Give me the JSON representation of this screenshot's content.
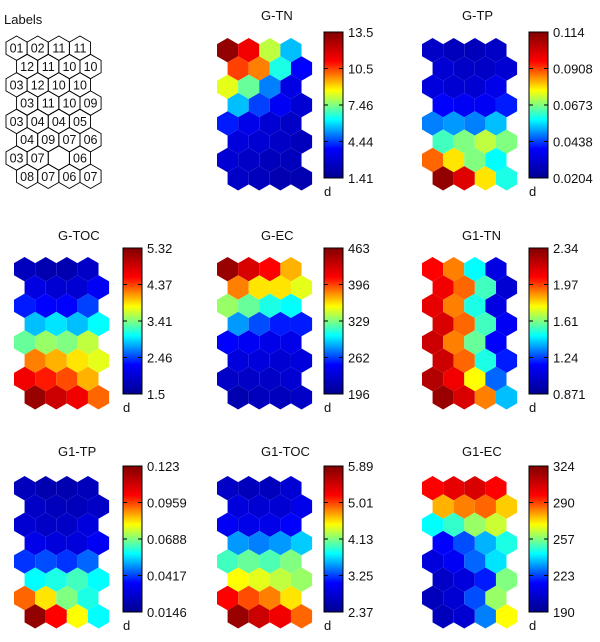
{
  "figure": {
    "labels_panel": {
      "title": "Labels",
      "rows": [
        [
          "01",
          "02",
          "11",
          "11"
        ],
        [
          "12",
          "11",
          "10",
          "10"
        ],
        [
          "03",
          "12",
          "10",
          "10"
        ],
        [
          "03",
          "11",
          "10",
          "09"
        ],
        [
          "03",
          "04",
          "04",
          "05"
        ],
        [
          "04",
          "09",
          "07",
          "06"
        ],
        [
          "03",
          "07",
          "",
          "06"
        ],
        [
          "08",
          "07",
          "06",
          "07"
        ]
      ]
    },
    "colorbar_unit": "d",
    "palette": [
      "#00008f",
      "#0000ff",
      "#00ffff",
      "#ffff00",
      "#ff0000",
      "#800000"
    ]
  },
  "chart_data": [
    {
      "type": "heatmap",
      "title": "G-TN",
      "colorbar_ticks": [
        "13.5",
        "10.5",
        "7.46",
        "4.44",
        "1.41"
      ],
      "range": [
        1.41,
        13.5
      ],
      "values": [
        [
          0.97,
          0.82,
          0.55,
          0.35
        ],
        [
          0.75,
          0.7,
          0.42,
          0.2
        ],
        [
          0.58,
          0.48,
          0.3,
          0.15
        ],
        [
          0.35,
          0.25,
          0.18,
          0.12
        ],
        [
          0.22,
          0.16,
          0.12,
          0.1
        ],
        [
          0.14,
          0.12,
          0.1,
          0.08
        ],
        [
          0.12,
          0.1,
          0.08,
          0.08
        ],
        [
          0.1,
          0.08,
          0.06,
          0.06
        ]
      ]
    },
    {
      "type": "heatmap",
      "title": "G-TP",
      "colorbar_ticks": [
        "0.114",
        "0.0908",
        "0.0673",
        "0.0438",
        "0.0204"
      ],
      "range": [
        0.0204,
        0.114
      ],
      "values": [
        [
          0.1,
          0.08,
          0.08,
          0.1
        ],
        [
          0.12,
          0.1,
          0.1,
          0.12
        ],
        [
          0.14,
          0.12,
          0.12,
          0.16
        ],
        [
          0.2,
          0.18,
          0.18,
          0.22
        ],
        [
          0.3,
          0.32,
          0.3,
          0.35
        ],
        [
          0.45,
          0.5,
          0.55,
          0.5
        ],
        [
          0.72,
          0.62,
          0.5,
          0.4
        ],
        [
          0.97,
          0.85,
          0.62,
          0.42
        ]
      ]
    },
    {
      "type": "heatmap",
      "title": "G-TOC",
      "colorbar_ticks": [
        "5.32",
        "4.37",
        "3.41",
        "2.46",
        "1.5"
      ],
      "range": [
        1.5,
        5.32
      ],
      "values": [
        [
          0.08,
          0.06,
          0.06,
          0.1
        ],
        [
          0.15,
          0.12,
          0.12,
          0.18
        ],
        [
          0.22,
          0.2,
          0.2,
          0.25
        ],
        [
          0.35,
          0.38,
          0.35,
          0.4
        ],
        [
          0.48,
          0.52,
          0.5,
          0.55
        ],
        [
          0.7,
          0.66,
          0.62,
          0.58
        ],
        [
          0.82,
          0.78,
          0.74,
          0.66
        ],
        [
          0.96,
          0.88,
          0.82,
          0.72
        ]
      ]
    },
    {
      "type": "heatmap",
      "title": "G-EC",
      "colorbar_ticks": [
        "463",
        "396",
        "329",
        "262",
        "196"
      ],
      "range": [
        196,
        463
      ],
      "values": [
        [
          0.96,
          0.86,
          0.8,
          0.66
        ],
        [
          0.7,
          0.62,
          0.62,
          0.58
        ],
        [
          0.52,
          0.48,
          0.42,
          0.4
        ],
        [
          0.32,
          0.26,
          0.22,
          0.22
        ],
        [
          0.2,
          0.18,
          0.16,
          0.16
        ],
        [
          0.14,
          0.14,
          0.12,
          0.14
        ],
        [
          0.1,
          0.1,
          0.1,
          0.12
        ],
        [
          0.06,
          0.08,
          0.08,
          0.1
        ]
      ]
    },
    {
      "type": "heatmap",
      "title": "G1-TN",
      "colorbar_ticks": [
        "2.34",
        "1.97",
        "1.61",
        "1.24",
        "0.871"
      ],
      "range": [
        0.871,
        2.34
      ],
      "values": [
        [
          0.8,
          0.7,
          0.4,
          0.15
        ],
        [
          0.82,
          0.72,
          0.45,
          0.12
        ],
        [
          0.84,
          0.7,
          0.42,
          0.15
        ],
        [
          0.86,
          0.72,
          0.45,
          0.18
        ],
        [
          0.88,
          0.7,
          0.48,
          0.2
        ],
        [
          0.88,
          0.72,
          0.42,
          0.22
        ],
        [
          0.92,
          0.82,
          0.6,
          0.28
        ],
        [
          0.96,
          0.86,
          0.7,
          0.35
        ]
      ]
    },
    {
      "type": "heatmap",
      "title": "G1-TP",
      "colorbar_ticks": [
        "0.123",
        "0.0959",
        "0.0688",
        "0.0417",
        "0.0146"
      ],
      "range": [
        0.0146,
        0.123
      ],
      "values": [
        [
          0.08,
          0.06,
          0.06,
          0.08
        ],
        [
          0.1,
          0.08,
          0.08,
          0.1
        ],
        [
          0.12,
          0.1,
          0.1,
          0.14
        ],
        [
          0.16,
          0.14,
          0.14,
          0.18
        ],
        [
          0.24,
          0.26,
          0.24,
          0.28
        ],
        [
          0.4,
          0.42,
          0.45,
          0.4
        ],
        [
          0.72,
          0.62,
          0.5,
          0.42
        ],
        [
          0.97,
          0.8,
          0.6,
          0.4
        ]
      ]
    },
    {
      "type": "heatmap",
      "title": "G1-TOC",
      "colorbar_ticks": [
        "5.89",
        "5.01",
        "4.13",
        "3.25",
        "2.37"
      ],
      "range": [
        2.37,
        5.89
      ],
      "values": [
        [
          0.1,
          0.08,
          0.08,
          0.12
        ],
        [
          0.14,
          0.12,
          0.12,
          0.16
        ],
        [
          0.18,
          0.16,
          0.16,
          0.2
        ],
        [
          0.32,
          0.3,
          0.32,
          0.36
        ],
        [
          0.45,
          0.48,
          0.46,
          0.5
        ],
        [
          0.6,
          0.58,
          0.55,
          0.52
        ],
        [
          0.8,
          0.74,
          0.7,
          0.62
        ],
        [
          0.96,
          0.88,
          0.82,
          0.72
        ]
      ]
    },
    {
      "type": "heatmap",
      "title": "G1-EC",
      "colorbar_ticks": [
        "324",
        "290",
        "257",
        "223",
        "190"
      ],
      "range": [
        190,
        324
      ],
      "values": [
        [
          0.8,
          0.84,
          0.86,
          0.8
        ],
        [
          0.66,
          0.7,
          0.72,
          0.64
        ],
        [
          0.4,
          0.44,
          0.52,
          0.56
        ],
        [
          0.2,
          0.26,
          0.34,
          0.42
        ],
        [
          0.14,
          0.18,
          0.28,
          0.38
        ],
        [
          0.1,
          0.14,
          0.22,
          0.5
        ],
        [
          0.08,
          0.12,
          0.26,
          0.52
        ],
        [
          0.08,
          0.12,
          0.3,
          0.6
        ]
      ]
    }
  ]
}
